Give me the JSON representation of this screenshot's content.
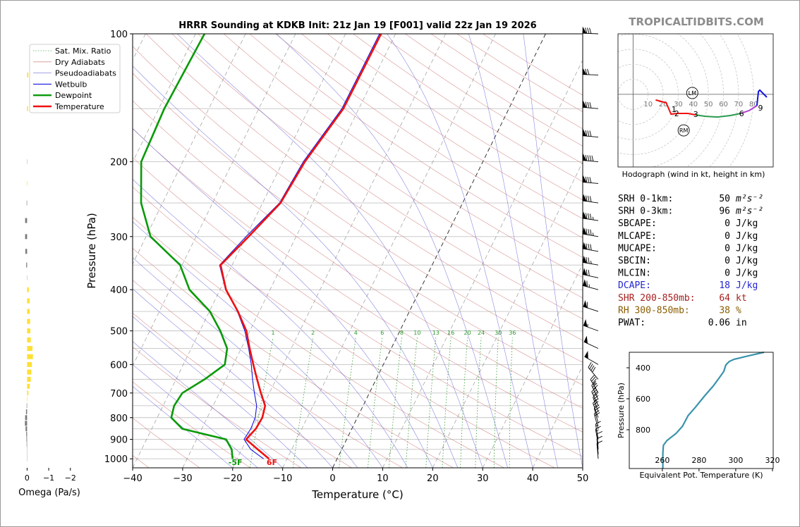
{
  "watermark": "TROPICALTIDBITS.COM",
  "stats": {
    "rows": [
      {
        "label": "SRH 0-1km:",
        "value": 50,
        "unit": "m²s⁻²"
      },
      {
        "label": "SRH 0-3km:",
        "value": 96,
        "unit": "m²s⁻²"
      },
      {
        "label": "SBCAPE:",
        "value": 0,
        "unit": "J/kg"
      },
      {
        "label": "MLCAPE:",
        "value": 0,
        "unit": "J/kg"
      },
      {
        "label": "MUCAPE:",
        "value": 0,
        "unit": "J/kg"
      },
      {
        "label": "SBCIN:",
        "value": 0,
        "unit": "J/kg"
      },
      {
        "label": "MLCIN:",
        "value": 0,
        "unit": "J/kg"
      },
      {
        "label": "DCAPE:",
        "value": 18,
        "unit": "J/kg",
        "color": "#2424d0"
      },
      {
        "label": "SHR 200-850mb:",
        "value": 64,
        "unit": "kt",
        "color": "#a82020"
      },
      {
        "label": "RH 300-850mb:",
        "value": 38,
        "unit": "%",
        "color": "#8a5c00"
      },
      {
        "label": "PWAT:",
        "value": 0.06,
        "unit": "in"
      }
    ]
  },
  "chart_data": [
    {
      "type": "skewt",
      "title": "HRRR Sounding at KDKB Init: 21z Jan 19 [F001] valid 22z Jan 19 2026",
      "xlabel": "Temperature (°C)",
      "ylabel": "Pressure (hPa)",
      "xlim": [
        -40,
        50
      ],
      "xticks": [
        {
          "value": -40,
          "label": "−40"
        },
        {
          "value": -30,
          "label": "−30"
        },
        {
          "value": -20,
          "label": "−20"
        },
        {
          "value": -10,
          "label": "−10"
        },
        0,
        10,
        20,
        30,
        40,
        50
      ],
      "ylim": [
        1050,
        100
      ],
      "log_y": true,
      "yticks": [
        100,
        200,
        300,
        400,
        500,
        600,
        700,
        800,
        900,
        1000
      ],
      "yminor": [
        150,
        250,
        350,
        450,
        550,
        650,
        750,
        850,
        950
      ],
      "pressure": [
        1000,
        950,
        900,
        850,
        800,
        750,
        700,
        650,
        600,
        550,
        500,
        450,
        400,
        350,
        300,
        250,
        200,
        150,
        100
      ],
      "reference_lines": [
        {
          "name": "Sat. Mix. Ratio",
          "color": "#2e9a2e",
          "style": "dotted",
          "values": [
            1,
            2,
            4,
            6,
            8,
            10,
            13,
            16,
            20,
            24,
            30,
            36
          ]
        },
        {
          "name": "Dry Adiabats",
          "color": "#d07878",
          "style": "solid"
        },
        {
          "name": "Pseudoadiabats",
          "color": "#6a6ad8",
          "style": "solid"
        }
      ],
      "series": [
        {
          "name": "Wetbulb",
          "color": "#1414e0",
          "values": [
            -14.7,
            -18.2,
            -20.5,
            -20.2,
            -20.4,
            -21.3,
            -23.0,
            -24.7,
            -26.4,
            -28.5,
            -31.0,
            -34.4,
            -38.9,
            -42.5,
            -40.0,
            -36.6,
            -35.9,
            -33.4,
            -33.2
          ]
        },
        {
          "name": "Dewpoint",
          "color": "#089a08",
          "surface_label": "-5F",
          "values": [
            -20.9,
            -22.0,
            -24.1,
            -33.9,
            -37.2,
            -37.8,
            -37.4,
            -34.3,
            -31.7,
            -32.8,
            -35.9,
            -39.9,
            -46.1,
            -50.4,
            -59.1,
            -64.3,
            -68.3,
            -68.9,
            -68.2
          ]
        },
        {
          "name": "Temperature",
          "color": "#f01010",
          "surface_label": "6F",
          "values": [
            -13.6,
            -16.8,
            -20.1,
            -19.2,
            -19.0,
            -19.6,
            -21.7,
            -23.8,
            -26.0,
            -28.3,
            -30.7,
            -34.3,
            -38.8,
            -42.3,
            -39.5,
            -36.4,
            -35.6,
            -33.1,
            -32.9
          ]
        }
      ],
      "barbs": {
        "pressure": [
          100,
          125,
          150,
          175,
          200,
          225,
          250,
          275,
          300,
          325,
          350,
          375,
          400,
          450,
          500,
          550,
          600,
          650,
          700,
          725,
          750,
          775,
          800,
          825,
          850,
          900,
          925,
          950,
          975,
          1000
        ],
        "speed": [
          80,
          70,
          80,
          80,
          90,
          80,
          80,
          85,
          85,
          80,
          75,
          70,
          65,
          60,
          55,
          50,
          50,
          40,
          35,
          30,
          30,
          25,
          25,
          20,
          20,
          15,
          15,
          10,
          10,
          10
        ],
        "direction": [
          272,
          272,
          275,
          275,
          275,
          275,
          278,
          278,
          280,
          280,
          280,
          282,
          285,
          288,
          290,
          295,
          300,
          320,
          330,
          335,
          335,
          340,
          340,
          345,
          345,
          350,
          350,
          355,
          355,
          355
        ]
      }
    },
    {
      "type": "barh",
      "xlabel": "Omega (Pa/s)",
      "xlim": [
        0.6,
        -2.4
      ],
      "xticks": [
        0,
        {
          "value": -1,
          "label": "−1"
        },
        {
          "value": -2,
          "label": "−2"
        }
      ],
      "ylim": [
        1050,
        100
      ],
      "color_negative": "#ffe033",
      "color_positive": "#7a7a7a",
      "pressure": [
        125,
        150,
        175,
        200,
        225,
        250,
        275,
        300,
        325,
        350,
        375,
        400,
        425,
        450,
        475,
        500,
        525,
        550,
        575,
        600,
        625,
        650,
        675,
        700,
        725,
        750,
        775,
        800,
        825,
        850,
        875,
        900,
        925,
        950,
        975,
        1000
      ],
      "values": [
        -0.06,
        -0.05,
        0,
        0.01,
        -0.02,
        0.02,
        0.09,
        0.09,
        0.08,
        0.04,
        0.01,
        -0.08,
        -0.12,
        -0.12,
        -0.14,
        -0.15,
        -0.17,
        -0.25,
        -0.27,
        -0.22,
        -0.2,
        -0.17,
        -0.12,
        -0.06,
        -0.02,
        0.02,
        0.05,
        0.09,
        0.1,
        0.07,
        0.04,
        0.03,
        0.02,
        0.01,
        0.01,
        0.01
      ]
    },
    {
      "type": "hodograph",
      "caption": "Hodograph (wind in kt, height in km)",
      "xlim": [
        -10,
        93
      ],
      "ylim": [
        -48,
        40
      ],
      "rings": [
        10,
        20,
        30,
        40,
        50,
        60,
        70,
        80
      ],
      "series": [
        {
          "color": "#f01010",
          "u": [
            15,
            22,
            25.2,
            29.4,
            36.4,
            41.6
          ],
          "v": [
            -3.7,
            -5.6,
            -13.1,
            -12.6,
            -12.6,
            -13.6
          ]
        },
        {
          "color": "#2a9a50",
          "u": [
            41.6,
            48.1,
            56.1,
            64.5,
            71.5
          ],
          "v": [
            -13.6,
            -14.5,
            -15,
            -14,
            -12.6
          ]
        },
        {
          "color": "#b040d0",
          "u": [
            71.5,
            77.1,
            82.2
          ],
          "v": [
            -12.6,
            -10.7,
            -7.5
          ]
        },
        {
          "color": "#1414e0",
          "u": [
            82.2,
            83.2,
            84.1,
            88.8
          ],
          "v": [
            -7.5,
            1.9,
            2.8,
            -1.9
          ]
        }
      ],
      "height_labels": {
        "labels": [
          "1",
          "2",
          "3",
          "6",
          "9"
        ],
        "u": [
          27.1,
          29,
          41.6,
          72,
          84.6
        ],
        "v": [
          -9.8,
          -12.6,
          -13.1,
          -12.6,
          -8.9
        ]
      },
      "motion": {
        "labels": [
          "LM",
          "RM"
        ],
        "u": [
          39.3,
          33.6
        ],
        "v": [
          0.9,
          -23.8
        ]
      }
    },
    {
      "type": "line",
      "xlabel": "Equivalent Pot. Temperature (K)",
      "ylabel": "Pressure (hPa)",
      "xlim": [
        242,
        320.4
      ],
      "xticks": [
        260,
        280,
        300,
        320
      ],
      "ylim": [
        1050,
        300
      ],
      "yticks": [
        400,
        600,
        800
      ],
      "color": "#3a93ab",
      "pressure": [
        1050,
        1000,
        950,
        900,
        870,
        823,
        777,
        709,
        655,
        582,
        518,
        468,
        423,
        382,
        359,
        345,
        323,
        300
      ],
      "values": [
        260.3,
        260.3,
        260.3,
        260.6,
        262.5,
        267.5,
        271,
        274,
        278,
        283,
        287.7,
        290.8,
        293.5,
        294.6,
        296.5,
        299.2,
        306.9,
        315.4
      ]
    }
  ]
}
